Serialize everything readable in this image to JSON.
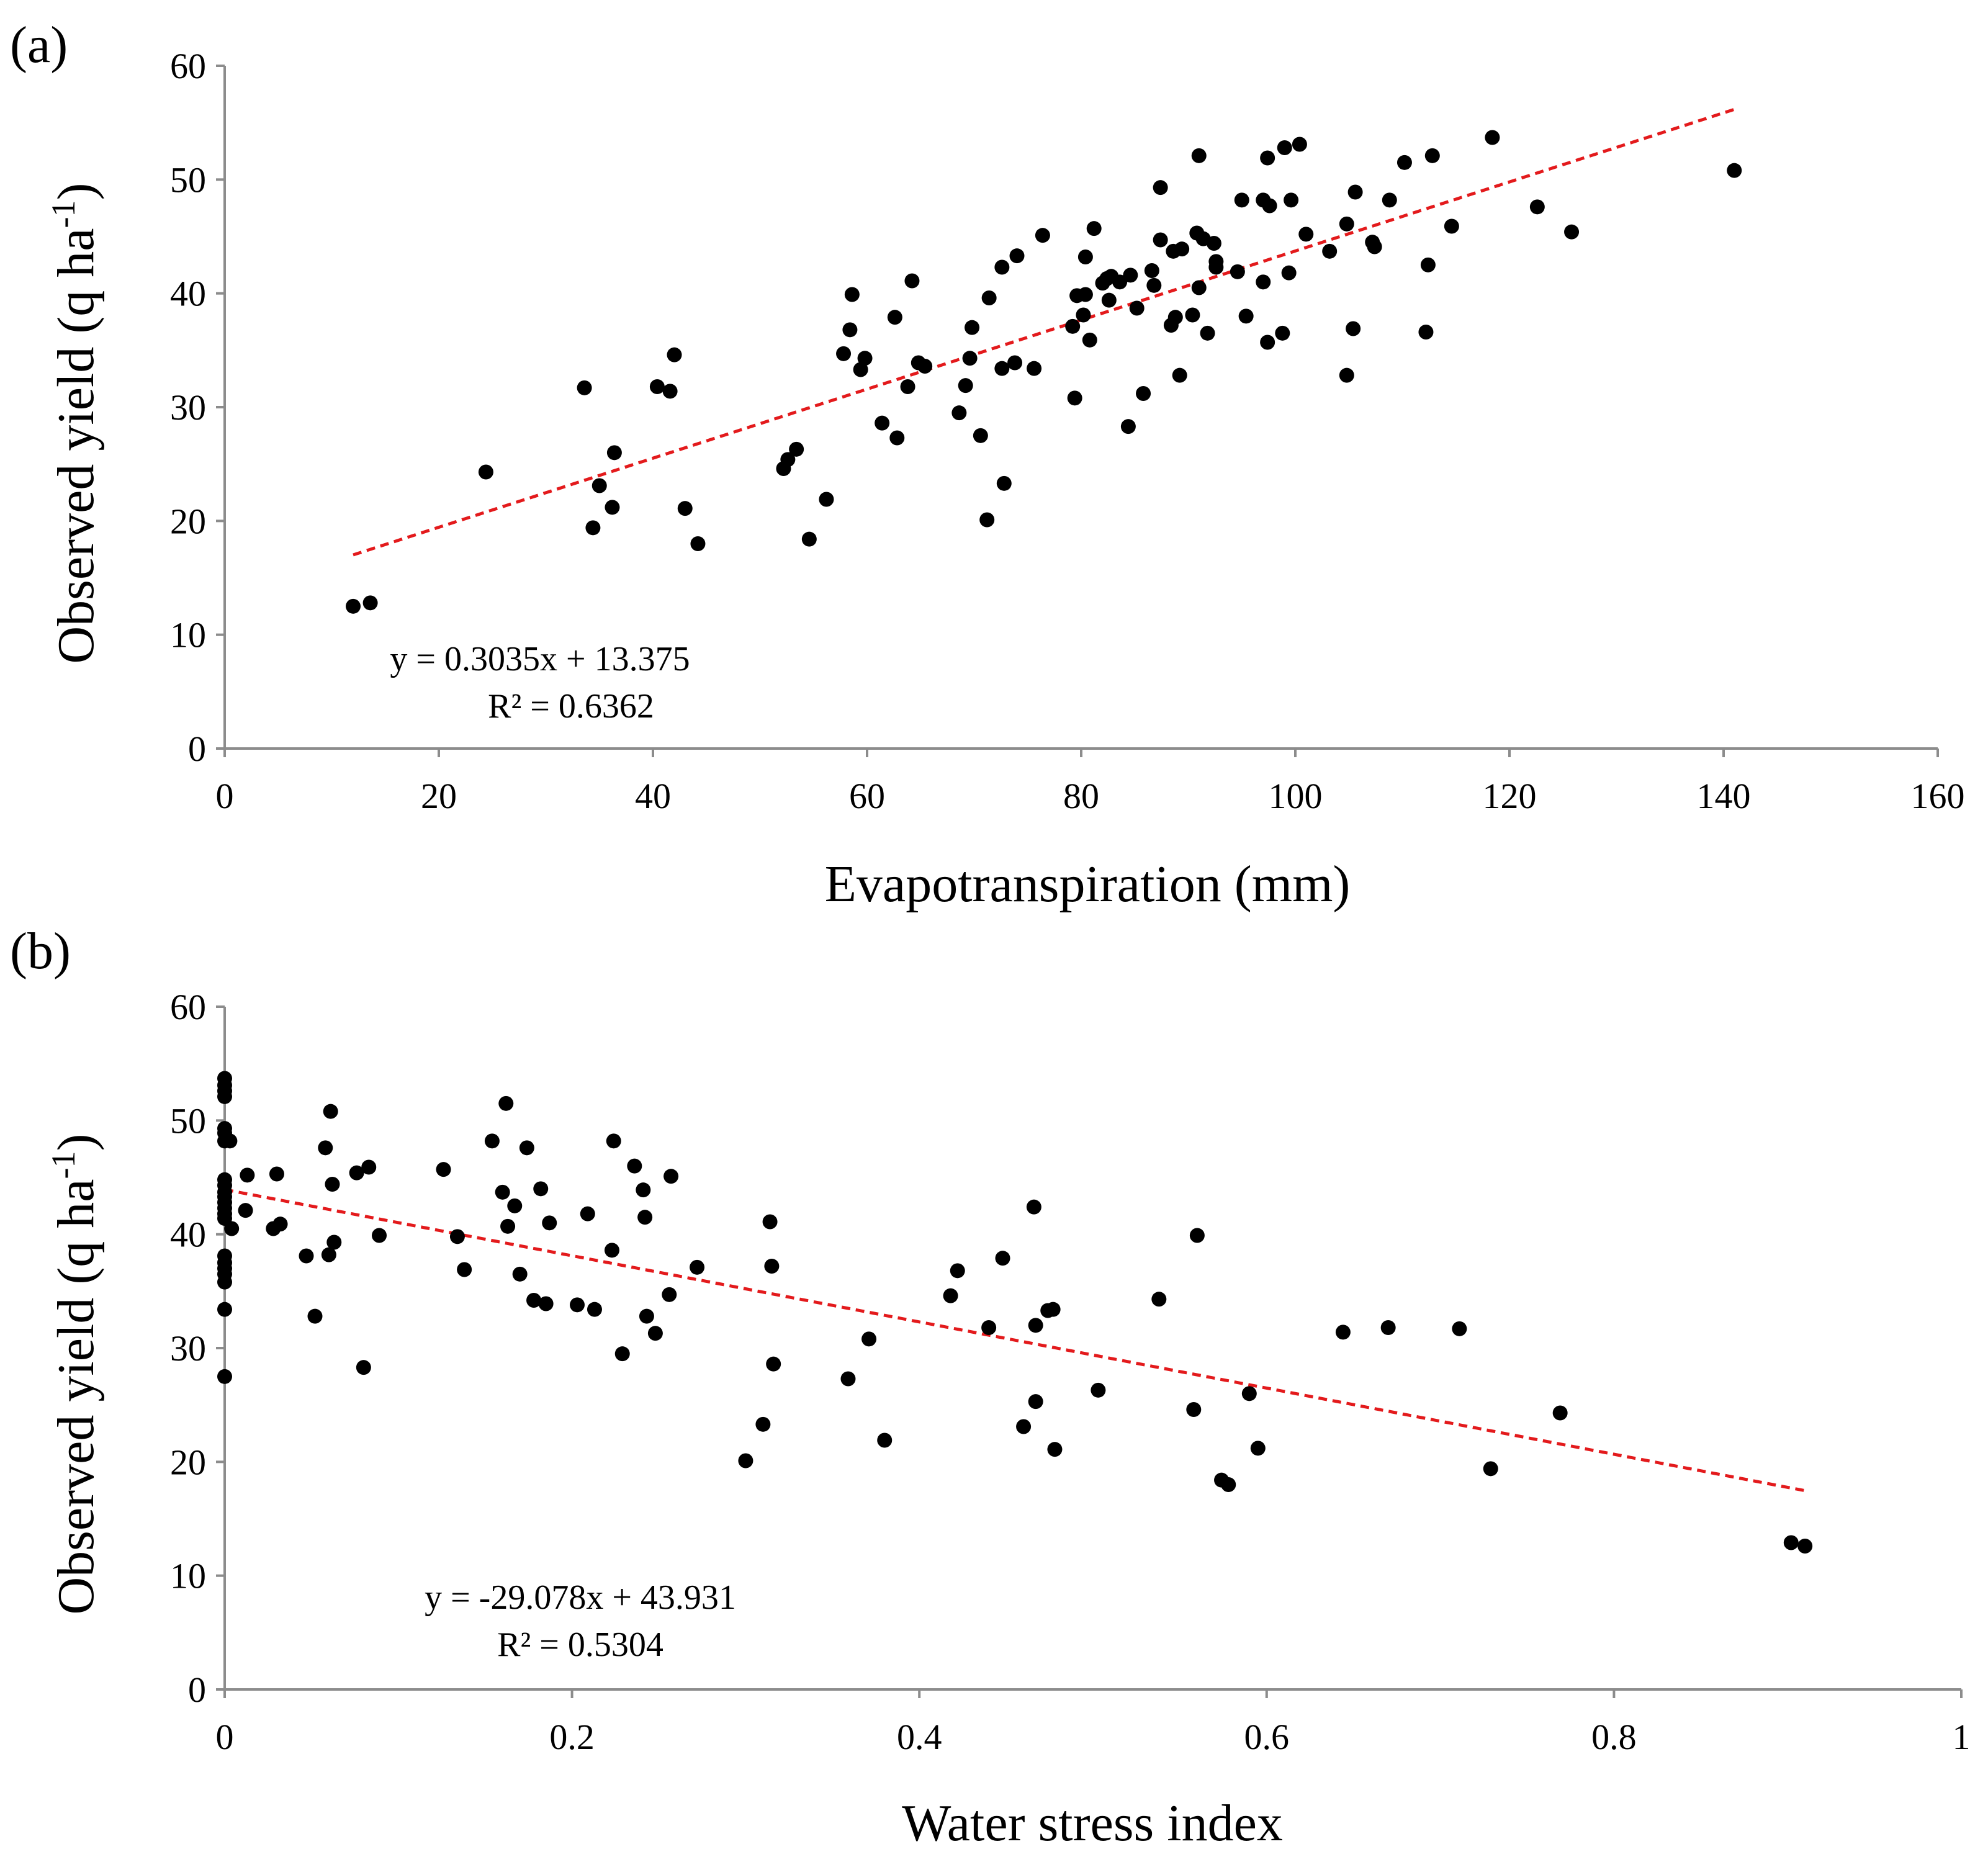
{
  "chart_data": [
    {
      "type": "scatter",
      "panel_label": "(a)",
      "xlabel": "Evapotranspiration (mm)",
      "ylabel_main": "Observed yield (q ha",
      "ylabel_sup": "-1",
      "ylabel_close": ")",
      "xlim": [
        0,
        160
      ],
      "ylim": [
        0,
        60
      ],
      "xticks": [
        0,
        20,
        40,
        60,
        80,
        100,
        120,
        140,
        160
      ],
      "yticks": [
        0,
        10,
        20,
        30,
        40,
        50,
        60
      ],
      "xtick_labels": [
        "0",
        "20",
        "40",
        "60",
        "80",
        "100",
        "120",
        "140",
        "160"
      ],
      "ytick_labels": [
        "0",
        "10",
        "20",
        "30",
        "40",
        "50",
        "60"
      ],
      "grid": false,
      "marker_color": "#000000",
      "trendline": {
        "slope": 0.3035,
        "intercept": 13.375,
        "x_range": [
          12,
          141
        ],
        "color": "#e31a1c",
        "style": "dashed"
      },
      "equation": "y = 0.3035x + 13.375",
      "r2": "R² = 0.6362",
      "points": [
        [
          12,
          12.5
        ],
        [
          13.6,
          12.8
        ],
        [
          24.4,
          24.3
        ],
        [
          33.6,
          31.7
        ],
        [
          34.4,
          19.4
        ],
        [
          35,
          23.1
        ],
        [
          36.4,
          26
        ],
        [
          36.2,
          21.2
        ],
        [
          40.4,
          31.8
        ],
        [
          41.6,
          31.4
        ],
        [
          42,
          34.6
        ],
        [
          43,
          21.1
        ],
        [
          44.2,
          18
        ],
        [
          52.2,
          24.6
        ],
        [
          52.6,
          25.4
        ],
        [
          53.4,
          26.3
        ],
        [
          54.6,
          18.4
        ],
        [
          56.2,
          21.9
        ],
        [
          57.8,
          34.7
        ],
        [
          58.4,
          36.8
        ],
        [
          58.6,
          39.9
        ],
        [
          59.4,
          33.3
        ],
        [
          59.8,
          34.3
        ],
        [
          61.4,
          28.6
        ],
        [
          62.6,
          37.9
        ],
        [
          62.8,
          27.3
        ],
        [
          63.8,
          31.8
        ],
        [
          64.2,
          41.1
        ],
        [
          64.8,
          33.9
        ],
        [
          65.4,
          33.6
        ],
        [
          68.6,
          29.5
        ],
        [
          69.2,
          31.9
        ],
        [
          69.6,
          34.3
        ],
        [
          69.8,
          37
        ],
        [
          70.6,
          27.5
        ],
        [
          71.2,
          20.1
        ],
        [
          71.4,
          39.6
        ],
        [
          72.6,
          33.4
        ],
        [
          72.6,
          42.3
        ],
        [
          72.8,
          23.3
        ],
        [
          73.8,
          33.9
        ],
        [
          74,
          43.3
        ],
        [
          75.6,
          33.4
        ],
        [
          76.4,
          45.1
        ],
        [
          79.2,
          37.1
        ],
        [
          79.4,
          30.8
        ],
        [
          79.6,
          39.8
        ],
        [
          80.2,
          38.1
        ],
        [
          80.4,
          43.2
        ],
        [
          80.4,
          39.9
        ],
        [
          80.8,
          35.9
        ],
        [
          81.2,
          45.7
        ],
        [
          82,
          40.9
        ],
        [
          82.4,
          41.3
        ],
        [
          82.6,
          39.4
        ],
        [
          82.8,
          41.5
        ],
        [
          83.6,
          41
        ],
        [
          84.4,
          28.3
        ],
        [
          84.6,
          41.6
        ],
        [
          85.2,
          38.7
        ],
        [
          85.8,
          31.2
        ],
        [
          86.6,
          42
        ],
        [
          86.8,
          40.7
        ],
        [
          87.4,
          49.3
        ],
        [
          87.4,
          44.7
        ],
        [
          88.4,
          37.2
        ],
        [
          88.6,
          43.7
        ],
        [
          88.8,
          37.9
        ],
        [
          89.2,
          32.8
        ],
        [
          89.4,
          43.9
        ],
        [
          90.4,
          38.1
        ],
        [
          90.8,
          45.3
        ],
        [
          91,
          40.5
        ],
        [
          91,
          52.1
        ],
        [
          91.4,
          44.8
        ],
        [
          91.8,
          36.5
        ],
        [
          92.4,
          44.4
        ],
        [
          92.6,
          42.3
        ],
        [
          92.6,
          42.8
        ],
        [
          94.6,
          41.9
        ],
        [
          95,
          48.2
        ],
        [
          95.4,
          38
        ],
        [
          97,
          48.2
        ],
        [
          97,
          41
        ],
        [
          97.4,
          35.7
        ],
        [
          97.4,
          51.9
        ],
        [
          97.6,
          47.7
        ],
        [
          98.8,
          36.5
        ],
        [
          99,
          52.8
        ],
        [
          99.4,
          41.8
        ],
        [
          99.6,
          48.2
        ],
        [
          100.4,
          53.1
        ],
        [
          101,
          45.2
        ],
        [
          103.2,
          43.7
        ],
        [
          104.8,
          32.8
        ],
        [
          104.8,
          46.1
        ],
        [
          105.4,
          36.9
        ],
        [
          105.6,
          48.9
        ],
        [
          107.2,
          44.5
        ],
        [
          107.4,
          44.1
        ],
        [
          108.8,
          48.2
        ],
        [
          110.2,
          51.5
        ],
        [
          112.2,
          36.6
        ],
        [
          112.4,
          42.5
        ],
        [
          112.8,
          52.1
        ],
        [
          114.6,
          45.9
        ],
        [
          118.4,
          53.7
        ],
        [
          122.6,
          47.6
        ],
        [
          125.8,
          45.4
        ],
        [
          141,
          50.8
        ]
      ]
    },
    {
      "type": "scatter",
      "panel_label": "(b)",
      "xlabel": "Water stress index",
      "ylabel_main": "Observed yield (q ha",
      "ylabel_sup": "-1",
      "ylabel_close": ")",
      "xlim": [
        0,
        1
      ],
      "ylim": [
        0,
        60
      ],
      "xticks": [
        0,
        0.2,
        0.4,
        0.6,
        0.8,
        1
      ],
      "yticks": [
        0,
        10,
        20,
        30,
        40,
        50,
        60
      ],
      "xtick_labels": [
        "0",
        "0.2",
        "0.4",
        "0.6",
        "0.8",
        "1"
      ],
      "ytick_labels": [
        "0",
        "10",
        "20",
        "30",
        "40",
        "50",
        "60"
      ],
      "grid": false,
      "marker_color": "#000000",
      "trendline": {
        "slope": -29.078,
        "intercept": 43.931,
        "x_range": [
          0,
          0.91
        ],
        "color": "#e31a1c",
        "style": "dashed"
      },
      "equation": "y = -29.078x + 43.931",
      "r2": "R² = 0.5304",
      "points": [
        [
          0,
          53.7
        ],
        [
          0,
          53.1
        ],
        [
          0,
          52.6
        ],
        [
          0,
          52.1
        ],
        [
          0,
          49.3
        ],
        [
          0,
          48.9
        ],
        [
          0,
          48.2
        ],
        [
          0,
          44.8
        ],
        [
          0,
          44.3
        ],
        [
          0,
          43.7
        ],
        [
          0,
          43.3
        ],
        [
          0,
          42.8
        ],
        [
          0,
          42.3
        ],
        [
          0,
          41.8
        ],
        [
          0,
          41.4
        ],
        [
          0,
          38.1
        ],
        [
          0,
          37.5
        ],
        [
          0,
          37
        ],
        [
          0,
          36.5
        ],
        [
          0,
          35.8
        ],
        [
          0,
          33.4
        ],
        [
          0,
          27.5
        ],
        [
          0.003,
          48.2
        ],
        [
          0.004,
          40.5
        ],
        [
          0.012,
          42.1
        ],
        [
          0.013,
          45.2
        ],
        [
          0.028,
          40.5
        ],
        [
          0.03,
          45.3
        ],
        [
          0.032,
          40.9
        ],
        [
          0.047,
          38.1
        ],
        [
          0.052,
          32.8
        ],
        [
          0.058,
          47.6
        ],
        [
          0.06,
          38.2
        ],
        [
          0.061,
          50.8
        ],
        [
          0.062,
          44.4
        ],
        [
          0.063,
          39.3
        ],
        [
          0.076,
          45.4
        ],
        [
          0.08,
          28.3
        ],
        [
          0.083,
          45.9
        ],
        [
          0.089,
          39.9
        ],
        [
          0.126,
          45.7
        ],
        [
          0.134,
          39.8
        ],
        [
          0.138,
          36.9
        ],
        [
          0.154,
          48.2
        ],
        [
          0.16,
          43.7
        ],
        [
          0.162,
          51.5
        ],
        [
          0.163,
          40.7
        ],
        [
          0.167,
          42.5
        ],
        [
          0.17,
          36.5
        ],
        [
          0.174,
          47.6
        ],
        [
          0.178,
          34.2
        ],
        [
          0.182,
          44
        ],
        [
          0.185,
          33.9
        ],
        [
          0.187,
          41
        ],
        [
          0.203,
          33.8
        ],
        [
          0.209,
          41.8
        ],
        [
          0.213,
          33.4
        ],
        [
          0.223,
          38.6
        ],
        [
          0.224,
          48.2
        ],
        [
          0.229,
          29.5
        ],
        [
          0.236,
          46
        ],
        [
          0.241,
          43.9
        ],
        [
          0.242,
          41.5
        ],
        [
          0.243,
          32.8
        ],
        [
          0.248,
          31.3
        ],
        [
          0.256,
          34.7
        ],
        [
          0.257,
          45.1
        ],
        [
          0.272,
          37.1
        ],
        [
          0.3,
          20.1
        ],
        [
          0.31,
          23.3
        ],
        [
          0.314,
          41.1
        ],
        [
          0.315,
          37.2
        ],
        [
          0.316,
          28.6
        ],
        [
          0.359,
          27.3
        ],
        [
          0.371,
          30.8
        ],
        [
          0.38,
          21.9
        ],
        [
          0.418,
          34.6
        ],
        [
          0.422,
          36.8
        ],
        [
          0.44,
          31.8
        ],
        [
          0.448,
          37.9
        ],
        [
          0.46,
          23.1
        ],
        [
          0.466,
          42.4
        ],
        [
          0.467,
          25.3
        ],
        [
          0.467,
          32
        ],
        [
          0.474,
          33.3
        ],
        [
          0.477,
          33.4
        ],
        [
          0.478,
          21.1
        ],
        [
          0.503,
          26.3
        ],
        [
          0.538,
          34.3
        ],
        [
          0.558,
          24.6
        ],
        [
          0.56,
          39.9
        ],
        [
          0.574,
          18.4
        ],
        [
          0.578,
          18
        ],
        [
          0.59,
          26
        ],
        [
          0.595,
          21.2
        ],
        [
          0.644,
          31.4
        ],
        [
          0.67,
          31.8
        ],
        [
          0.711,
          31.7
        ],
        [
          0.729,
          19.4
        ],
        [
          0.769,
          24.3
        ],
        [
          0.902,
          12.9
        ],
        [
          0.91,
          12.6
        ]
      ]
    }
  ]
}
